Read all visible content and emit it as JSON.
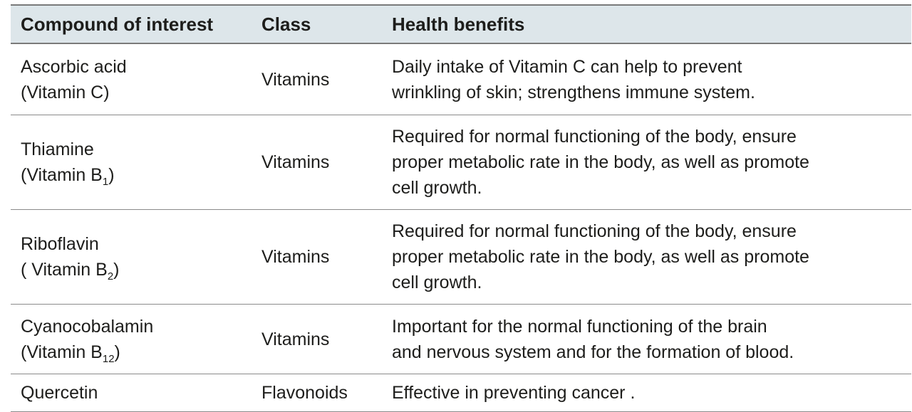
{
  "headers": [
    "Compound of interest",
    "Class",
    "Health benefits"
  ],
  "rows": [
    {
      "compound_line1": "Ascorbic acid",
      "compound_line2_prefix": "(Vitamin C)",
      "compound_sub": "",
      "compound_line2_suffix": "",
      "class": "Vitamins",
      "benefit_lines": [
        "Daily intake of Vitamin C can help to prevent",
        "wrinkling of skin; strengthens immune system."
      ]
    },
    {
      "compound_line1": "Thiamine",
      "compound_line2_prefix": "(Vitamin B",
      "compound_sub": "1",
      "compound_line2_suffix": ")",
      "class": "Vitamins",
      "benefit_lines": [
        "Required for normal functioning of the body, ensure",
        "proper metabolic rate in the body, as well as promote",
        "cell growth."
      ]
    },
    {
      "compound_line1": "Riboflavin",
      "compound_line2_prefix": "( Vitamin B",
      "compound_sub": "2",
      "compound_line2_suffix": ")",
      "class": "Vitamins",
      "benefit_lines": [
        "Required for normal functioning of the body, ensure",
        "proper metabolic rate in the body, as well as promote",
        "cell growth."
      ]
    },
    {
      "compound_line1": "Cyanocobalamin",
      "compound_line2_prefix": "(Vitamin B",
      "compound_sub": "12",
      "compound_line2_suffix": ")",
      "class": "Vitamins",
      "benefit_lines": [
        "Important for the normal functioning of the brain",
        "and nervous system and for the formation of blood."
      ]
    },
    {
      "compound_line1": "Quercetin",
      "compound_line2_prefix": "",
      "compound_sub": "",
      "compound_line2_suffix": "",
      "class": "Flavonoids",
      "benefit_lines": [
        "Effective in preventing cancer ."
      ]
    }
  ]
}
